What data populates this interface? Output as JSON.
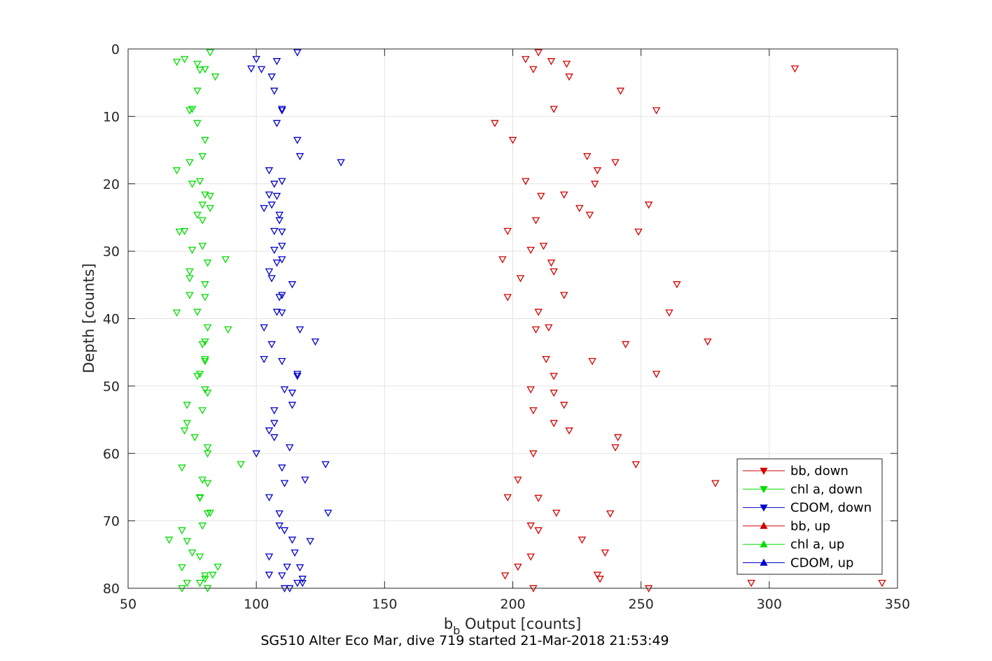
{
  "chart_data": {
    "type": "scatter",
    "title": "SG510 Alter Eco Mar, dive 719 started 21-Mar-2018 21:53:49",
    "xlabel_main": "b",
    "xlabel_sub": "b",
    "xlabel_rest": " Output [counts]",
    "ylabel": "Depth [counts]",
    "xlim": [
      50,
      350
    ],
    "ylim": [
      0,
      80
    ],
    "y_reversed": true,
    "grid": true,
    "xticks": [
      50,
      100,
      150,
      200,
      250,
      300,
      350
    ],
    "yticks": [
      0,
      10,
      20,
      30,
      40,
      50,
      60,
      70,
      80
    ],
    "legend_position": "bottom-right",
    "series": [
      {
        "name": "bb, down",
        "color": "#d40000",
        "marker": "triangle-down",
        "points": [
          [
            210,
            0.5
          ],
          [
            205,
            1.5
          ],
          [
            215,
            1.8
          ],
          [
            221,
            2.2
          ],
          [
            208,
            3.0
          ],
          [
            222,
            4.1
          ],
          [
            242,
            6.2
          ],
          [
            216,
            8.9
          ],
          [
            256,
            9.1
          ],
          [
            193,
            11.0
          ],
          [
            200,
            13.5
          ],
          [
            229,
            15.9
          ],
          [
            240,
            16.8
          ],
          [
            233,
            18.0
          ],
          [
            205,
            19.6
          ],
          [
            232,
            20.0
          ],
          [
            220,
            21.6
          ],
          [
            211,
            21.8
          ],
          [
            253,
            23.1
          ],
          [
            226,
            23.6
          ],
          [
            230,
            24.6
          ],
          [
            209,
            25.4
          ],
          [
            198,
            27.0
          ],
          [
            249,
            27.1
          ],
          [
            212,
            29.2
          ],
          [
            207,
            29.8
          ],
          [
            196,
            31.2
          ],
          [
            215,
            31.7
          ],
          [
            216,
            33.0
          ],
          [
            203,
            34.0
          ],
          [
            264,
            34.9
          ],
          [
            220,
            36.5
          ],
          [
            198,
            36.8
          ],
          [
            210,
            39.0
          ],
          [
            261,
            39.1
          ],
          [
            214,
            41.3
          ],
          [
            209,
            41.6
          ],
          [
            276,
            43.4
          ],
          [
            244,
            43.8
          ],
          [
            213,
            46.0
          ],
          [
            231,
            46.3
          ],
          [
            256,
            48.2
          ],
          [
            216,
            48.5
          ],
          [
            207,
            50.5
          ],
          [
            216,
            51.0
          ],
          [
            220,
            52.8
          ],
          [
            208,
            53.6
          ],
          [
            216,
            55.5
          ],
          [
            222,
            56.6
          ],
          [
            241,
            57.6
          ],
          [
            240,
            59.1
          ],
          [
            208,
            60.0
          ],
          [
            248,
            61.6
          ],
          [
            202,
            63.9
          ],
          [
            279,
            64.4
          ],
          [
            198,
            66.5
          ],
          [
            210,
            66.6
          ],
          [
            217,
            68.8
          ],
          [
            238,
            68.9
          ],
          [
            207,
            70.7
          ],
          [
            210,
            71.4
          ],
          [
            227,
            72.8
          ],
          [
            236,
            74.7
          ],
          [
            207,
            75.3
          ],
          [
            202,
            76.8
          ],
          [
            197,
            78.1
          ],
          [
            233,
            78.0
          ],
          [
            234,
            78.6
          ],
          [
            293,
            79.2
          ],
          [
            344,
            79.2
          ],
          [
            253,
            80.0
          ],
          [
            208,
            80.0
          ],
          [
            310,
            2.9
          ]
        ]
      },
      {
        "name": "chl a, down",
        "color": "#00dd00",
        "marker": "triangle-down",
        "points": [
          [
            82,
            0.5
          ],
          [
            72,
            1.5
          ],
          [
            69,
            1.9
          ],
          [
            77,
            2.2
          ],
          [
            80,
            3.0
          ],
          [
            78,
            3.1
          ],
          [
            84,
            4.1
          ],
          [
            77,
            6.2
          ],
          [
            75,
            8.9
          ],
          [
            74,
            9.1
          ],
          [
            77,
            11.0
          ],
          [
            80,
            13.5
          ],
          [
            79,
            15.9
          ],
          [
            74,
            16.8
          ],
          [
            69,
            18.0
          ],
          [
            78,
            19.6
          ],
          [
            75,
            20.0
          ],
          [
            80,
            21.6
          ],
          [
            82,
            21.8
          ],
          [
            79,
            23.1
          ],
          [
            82,
            23.6
          ],
          [
            77,
            24.6
          ],
          [
            79,
            25.4
          ],
          [
            72,
            27.0
          ],
          [
            70,
            27.1
          ],
          [
            79,
            29.2
          ],
          [
            75,
            29.8
          ],
          [
            88,
            31.2
          ],
          [
            81,
            31.7
          ],
          [
            74,
            33.0
          ],
          [
            74,
            34.0
          ],
          [
            80,
            34.9
          ],
          [
            74,
            36.5
          ],
          [
            80,
            36.8
          ],
          [
            77,
            39.0
          ],
          [
            69,
            39.1
          ],
          [
            81,
            41.3
          ],
          [
            89,
            41.6
          ],
          [
            80,
            43.4
          ],
          [
            79,
            43.8
          ],
          [
            80,
            46.0
          ],
          [
            80,
            46.3
          ],
          [
            78,
            48.2
          ],
          [
            77,
            48.5
          ],
          [
            80,
            50.5
          ],
          [
            81,
            51.0
          ],
          [
            73,
            52.8
          ],
          [
            79,
            53.6
          ],
          [
            73,
            55.5
          ],
          [
            72,
            56.6
          ],
          [
            76,
            57.6
          ],
          [
            81,
            59.1
          ],
          [
            81,
            60.0
          ],
          [
            94,
            61.6
          ],
          [
            71,
            62.1
          ],
          [
            79,
            63.9
          ],
          [
            81,
            64.4
          ],
          [
            78,
            66.5
          ],
          [
            78,
            66.6
          ],
          [
            82,
            68.8
          ],
          [
            81,
            68.9
          ],
          [
            79,
            70.7
          ],
          [
            71,
            71.4
          ],
          [
            66,
            72.8
          ],
          [
            73,
            73.0
          ],
          [
            75,
            74.7
          ],
          [
            78,
            75.3
          ],
          [
            85,
            76.8
          ],
          [
            71,
            76.9
          ],
          [
            80,
            78.1
          ],
          [
            83,
            78.0
          ],
          [
            80,
            78.6
          ],
          [
            73,
            79.2
          ],
          [
            78,
            79.2
          ],
          [
            81,
            80.0
          ],
          [
            71,
            80.0
          ]
        ]
      },
      {
        "name": "CDOM, down",
        "color": "#0000cc",
        "marker": "triangle-down",
        "points": [
          [
            116,
            0.5
          ],
          [
            100,
            1.5
          ],
          [
            108,
            1.8
          ],
          [
            98,
            2.9
          ],
          [
            102,
            3.0
          ],
          [
            106,
            4.1
          ],
          [
            107,
            6.2
          ],
          [
            110,
            8.9
          ],
          [
            110,
            9.1
          ],
          [
            108,
            11.0
          ],
          [
            116,
            13.5
          ],
          [
            117,
            15.9
          ],
          [
            133,
            16.8
          ],
          [
            105,
            18.0
          ],
          [
            110,
            19.6
          ],
          [
            107,
            20.0
          ],
          [
            105,
            21.6
          ],
          [
            108,
            21.8
          ],
          [
            106,
            23.1
          ],
          [
            103,
            23.6
          ],
          [
            109,
            24.6
          ],
          [
            109,
            25.4
          ],
          [
            107,
            27.0
          ],
          [
            110,
            27.1
          ],
          [
            110,
            29.2
          ],
          [
            107,
            29.8
          ],
          [
            110,
            31.2
          ],
          [
            108,
            31.7
          ],
          [
            105,
            33.0
          ],
          [
            106,
            34.0
          ],
          [
            114,
            34.9
          ],
          [
            110,
            36.5
          ],
          [
            109,
            36.8
          ],
          [
            108,
            39.0
          ],
          [
            110,
            39.1
          ],
          [
            103,
            41.3
          ],
          [
            117,
            41.6
          ],
          [
            123,
            43.4
          ],
          [
            106,
            43.8
          ],
          [
            103,
            46.0
          ],
          [
            110,
            46.3
          ],
          [
            116,
            48.2
          ],
          [
            116,
            48.5
          ],
          [
            111,
            50.5
          ],
          [
            114,
            51.0
          ],
          [
            114,
            52.8
          ],
          [
            107,
            53.6
          ],
          [
            107,
            55.5
          ],
          [
            105,
            56.6
          ],
          [
            107,
            57.6
          ],
          [
            113,
            59.1
          ],
          [
            100,
            60.0
          ],
          [
            127,
            61.6
          ],
          [
            110,
            62.1
          ],
          [
            119,
            63.9
          ],
          [
            111,
            64.4
          ],
          [
            105,
            66.5
          ],
          [
            128,
            68.8
          ],
          [
            109,
            68.9
          ],
          [
            109,
            70.7
          ],
          [
            111,
            71.4
          ],
          [
            114,
            72.8
          ],
          [
            121,
            73.0
          ],
          [
            115,
            74.7
          ],
          [
            105,
            75.3
          ],
          [
            112,
            76.8
          ],
          [
            117,
            76.9
          ],
          [
            110,
            78.1
          ],
          [
            105,
            78.0
          ],
          [
            118,
            78.6
          ],
          [
            116,
            79.2
          ],
          [
            118,
            79.2
          ],
          [
            113,
            80.0
          ],
          [
            111,
            80.0
          ]
        ]
      }
    ],
    "legend": [
      {
        "label": "bb, down",
        "color": "#d40000",
        "marker": "triangle-down"
      },
      {
        "label": "chl a, down",
        "color": "#00dd00",
        "marker": "triangle-down"
      },
      {
        "label": "CDOM, down",
        "color": "#0000cc",
        "marker": "triangle-down"
      },
      {
        "label": "bb, up",
        "color": "#d40000",
        "marker": "triangle-up"
      },
      {
        "label": "chl a, up",
        "color": "#00dd00",
        "marker": "triangle-up"
      },
      {
        "label": "CDOM, up",
        "color": "#0000cc",
        "marker": "triangle-up"
      }
    ]
  }
}
